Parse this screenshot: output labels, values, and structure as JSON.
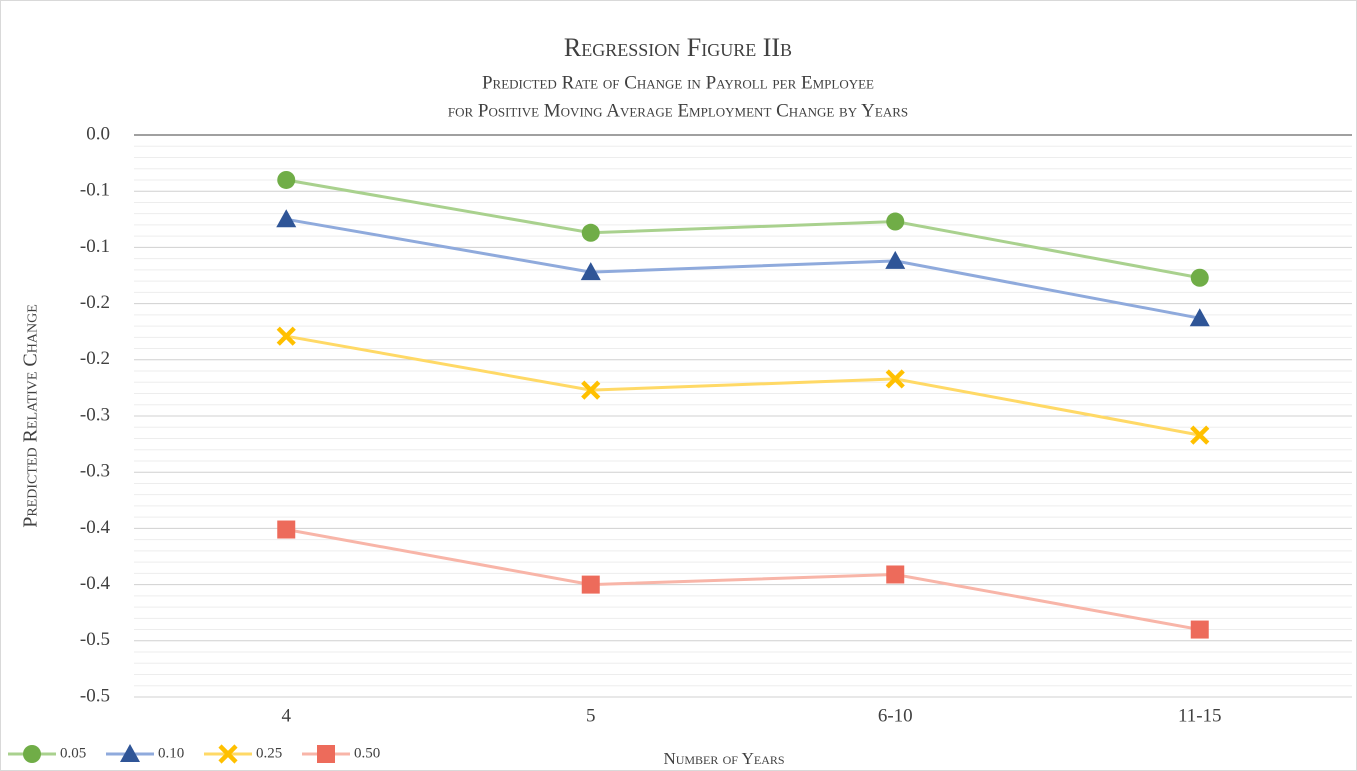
{
  "chart_data": {
    "type": "line",
    "title": "Regression Figure IIb",
    "subtitle": [
      "Predicted Rate of Change in Payroll per Employee",
      "for Positive Moving Average Employment Change by Years"
    ],
    "x_label": "Number of Years",
    "y_label": "Predicted Relative Change",
    "categories": [
      "4",
      "5",
      "6-10",
      "11-15"
    ],
    "series": [
      {
        "name": "0.05",
        "color": "#70ad47",
        "line_color": "#a9d18e",
        "marker": "circle",
        "values": [
          -0.04,
          -0.087,
          -0.077,
          -0.127
        ]
      },
      {
        "name": "0.10",
        "color": "#2f5597",
        "line_color": "#8faadc",
        "marker": "triangle",
        "values": [
          -0.075,
          -0.122,
          -0.112,
          -0.163
        ]
      },
      {
        "name": "0.25",
        "color": "#ffc000",
        "line_color": "#ffd966",
        "marker": "x",
        "values": [
          -0.179,
          -0.227,
          -0.217,
          -0.267
        ]
      },
      {
        "name": "0.50",
        "color": "#ed6b5b",
        "line_color": "#f8b5a8",
        "marker": "square",
        "values": [
          -0.351,
          -0.4,
          -0.391,
          -0.44
        ]
      }
    ],
    "ylim": [
      -0.5,
      0
    ],
    "yticks": [
      {
        "value": 0,
        "label": "0.0"
      },
      {
        "value": -0.05,
        "label": "-0.1"
      },
      {
        "value": -0.1,
        "label": "-0.1"
      },
      {
        "value": -0.15,
        "label": "-0.2"
      },
      {
        "value": -0.2,
        "label": "-0.2"
      },
      {
        "value": -0.25,
        "label": "-0.3"
      },
      {
        "value": -0.3,
        "label": "-0.3"
      },
      {
        "value": -0.35,
        "label": "-0.4"
      },
      {
        "value": -0.4,
        "label": "-0.4"
      },
      {
        "value": -0.45,
        "label": "-0.5"
      },
      {
        "value": -0.5,
        "label": "-0.5"
      }
    ],
    "grid": true,
    "minor_grid": true,
    "legend": "bottom-left"
  }
}
